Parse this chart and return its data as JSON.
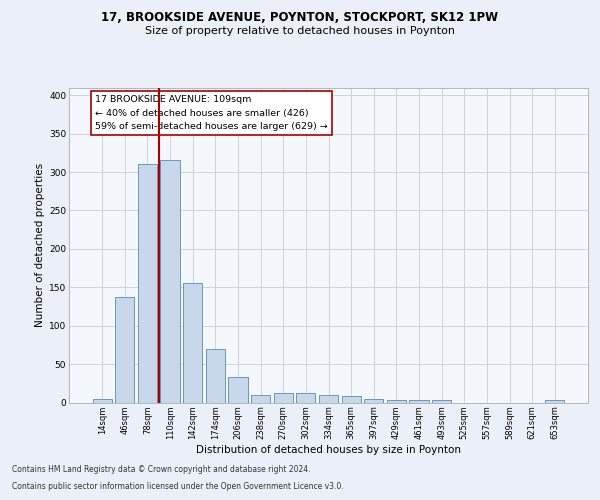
{
  "title1": "17, BROOKSIDE AVENUE, POYNTON, STOCKPORT, SK12 1PW",
  "title2": "Size of property relative to detached houses in Poynton",
  "xlabel": "Distribution of detached houses by size in Poynton",
  "ylabel": "Number of detached properties",
  "categories": [
    "14sqm",
    "46sqm",
    "78sqm",
    "110sqm",
    "142sqm",
    "174sqm",
    "206sqm",
    "238sqm",
    "270sqm",
    "302sqm",
    "334sqm",
    "365sqm",
    "397sqm",
    "429sqm",
    "461sqm",
    "493sqm",
    "525sqm",
    "557sqm",
    "589sqm",
    "621sqm",
    "653sqm"
  ],
  "values": [
    4,
    137,
    310,
    315,
    155,
    70,
    33,
    10,
    13,
    13,
    10,
    8,
    4,
    3,
    3,
    3,
    0,
    0,
    0,
    0,
    3
  ],
  "bar_color": "#c8d8ea",
  "bar_edgecolor": "#6699bb",
  "vline_color": "#aa0000",
  "vline_x": 2.5,
  "ann_line1": "17 BROOKSIDE AVENUE: 109sqm",
  "ann_line2": "← 40% of detached houses are smaller (426)",
  "ann_line3": "59% of semi-detached houses are larger (629) →",
  "ann_box_edgecolor": "#aa0000",
  "ann_box_facecolor": "#ffffff",
  "footnote1": "Contains HM Land Registry data © Crown copyright and database right 2024.",
  "footnote2": "Contains public sector information licensed under the Open Government Licence v3.0.",
  "ylim": [
    0,
    410
  ],
  "yticks": [
    0,
    50,
    100,
    150,
    200,
    250,
    300,
    350,
    400
  ],
  "bg_color": "#ebf0f8",
  "plot_bg_color": "#f4f7fc",
  "grid_color": "#c8ccd4",
  "title1_fontsize": 8.5,
  "title2_fontsize": 8.0,
  "xlabel_fontsize": 7.5,
  "ylabel_fontsize": 7.5,
  "tick_fontsize": 6.0,
  "ann_fontsize": 6.8,
  "footnote_fontsize": 5.5
}
